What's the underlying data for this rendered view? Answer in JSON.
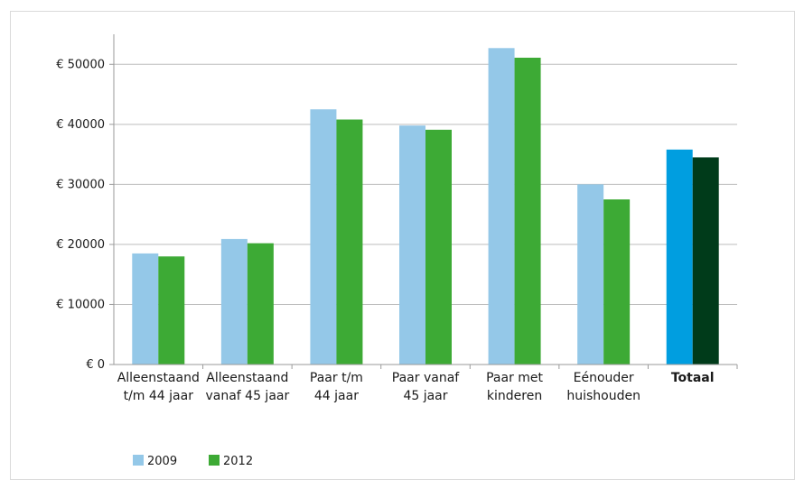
{
  "chart_data": {
    "type": "bar",
    "categories": [
      [
        "Alleenstaand",
        "t/m 44 jaar"
      ],
      [
        "Alleenstaand",
        "vanaf 45 jaar"
      ],
      [
        "Paar t/m",
        "44 jaar"
      ],
      [
        "Paar vanaf",
        "45 jaar"
      ],
      [
        "Paar met",
        "kinderen"
      ],
      [
        "Eénouder",
        "huishouden"
      ],
      [
        "Totaal"
      ]
    ],
    "bold_categories": [
      6
    ],
    "series": [
      {
        "name": "2009",
        "values": [
          18500,
          20900,
          42500,
          39800,
          52700,
          30000,
          35800
        ],
        "color": "#94c8e8",
        "highlight_color": "#009ee0"
      },
      {
        "name": "2012",
        "values": [
          18000,
          20200,
          40800,
          39100,
          51100,
          27500,
          34500
        ],
        "color": "#3daa35",
        "highlight_color": "#003b1a"
      }
    ],
    "yticks": [
      0,
      10000,
      20000,
      30000,
      40000,
      50000
    ],
    "ytick_labels": [
      "€ 0",
      "€ 10000",
      "€ 20000",
      "€ 30000",
      "€ 40000",
      "€ 50000"
    ],
    "ylim": [
      0,
      55000
    ],
    "grid": true,
    "legend_position": "bottom-left",
    "title": "",
    "xlabel": "",
    "ylabel": ""
  }
}
